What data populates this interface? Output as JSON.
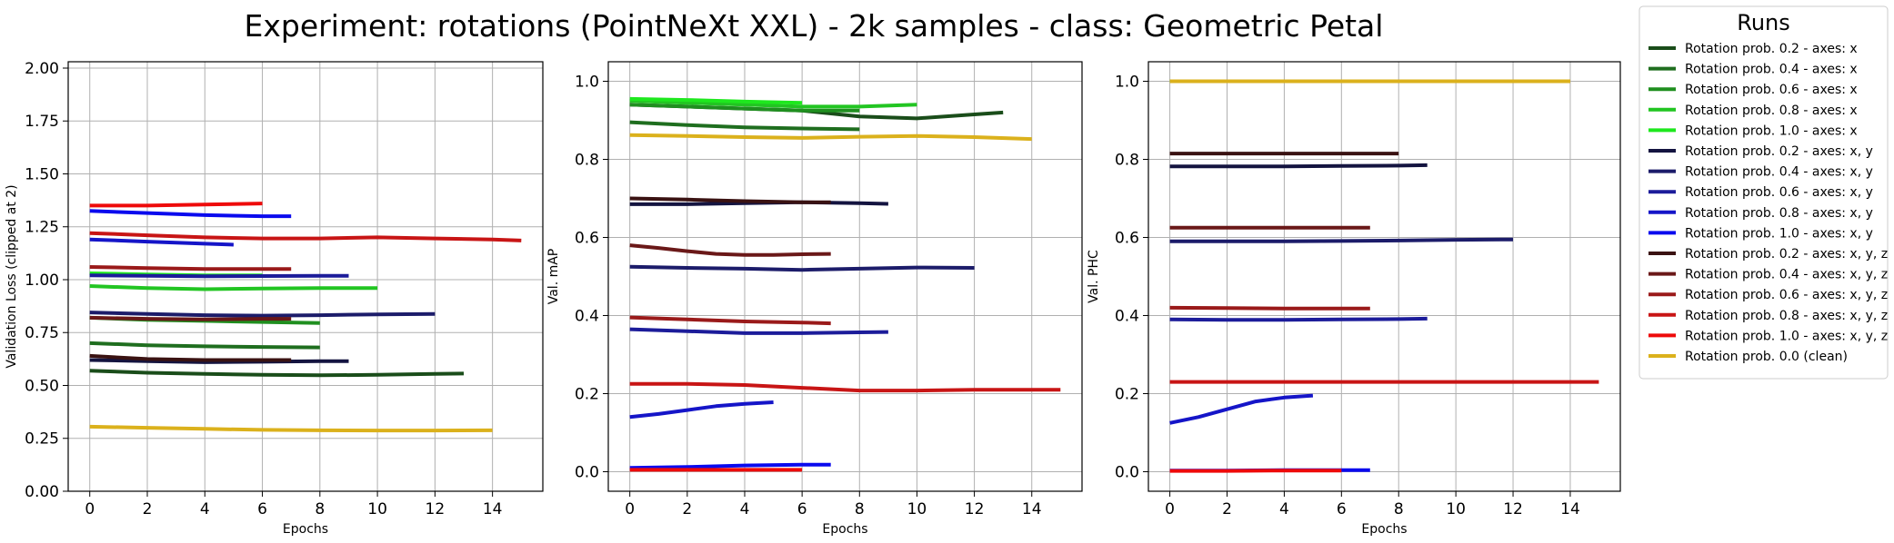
{
  "figure": {
    "title": "Experiment: rotations (PointNeXt XXL) - 2k samples - class: Geometric Petal"
  },
  "legend": {
    "title": "Runs",
    "placement": "outside-right"
  },
  "series_styles": [
    {
      "name": "Rotation prob. 0.2 - axes: x",
      "color": "#1a4d1a"
    },
    {
      "name": "Rotation prob. 0.4 - axes: x",
      "color": "#1f6e1f"
    },
    {
      "name": "Rotation prob. 0.6 - axes: x",
      "color": "#1f8f1f"
    },
    {
      "name": "Rotation prob. 0.8 - axes: x",
      "color": "#22c522"
    },
    {
      "name": "Rotation prob. 1.0 - axes: x",
      "color": "#1ee81e"
    },
    {
      "name": "Rotation prob. 0.2 - axes: x, y",
      "color": "#141440"
    },
    {
      "name": "Rotation prob. 0.4 - axes: x, y",
      "color": "#1c1c6a"
    },
    {
      "name": "Rotation prob. 0.6 - axes: x, y",
      "color": "#1c1c9a"
    },
    {
      "name": "Rotation prob. 0.8 - axes: x, y",
      "color": "#1515c8"
    },
    {
      "name": "Rotation prob. 1.0 - axes: x, y",
      "color": "#0a0aee"
    },
    {
      "name": "Rotation prob. 0.2 - axes: x, y, z",
      "color": "#3a1212"
    },
    {
      "name": "Rotation prob. 0.4 - axes: x, y, z",
      "color": "#6a1818"
    },
    {
      "name": "Rotation prob. 0.6 - axes: x, y, z",
      "color": "#9a1a1a"
    },
    {
      "name": "Rotation prob. 0.8 - axes: x, y, z",
      "color": "#c81515"
    },
    {
      "name": "Rotation prob. 1.0 - axes: x, y, z",
      "color": "#ee0a0a"
    },
    {
      "name": "Rotation prob. 0.0 (clean)",
      "color": "#dbb11c"
    }
  ],
  "chart_data": [
    {
      "type": "line",
      "xlabel": "Epochs",
      "ylabel": "Validation Loss (clipped at 2)",
      "xlim": [
        -0.75,
        15.75
      ],
      "ylim": [
        0,
        2.03
      ],
      "xticks": [
        0,
        2,
        4,
        6,
        8,
        10,
        12,
        14
      ],
      "yticks": [
        0.0,
        0.25,
        0.5,
        0.75,
        1.0,
        1.25,
        1.5,
        1.75,
        2.0
      ],
      "grid": true,
      "series": [
        {
          "name": "Rotation prob. 0.2 - axes: x",
          "x": [
            0,
            2,
            4,
            6,
            8,
            10,
            12,
            13
          ],
          "y": [
            0.57,
            0.56,
            0.555,
            0.55,
            0.548,
            0.55,
            0.555,
            0.556
          ]
        },
        {
          "name": "Rotation prob. 0.4 - axes: x",
          "x": [
            0,
            2,
            4,
            6,
            8
          ],
          "y": [
            0.7,
            0.69,
            0.685,
            0.682,
            0.68
          ]
        },
        {
          "name": "Rotation prob. 0.6 - axes: x",
          "x": [
            0,
            2,
            4,
            6,
            8
          ],
          "y": [
            0.82,
            0.81,
            0.805,
            0.8,
            0.795
          ]
        },
        {
          "name": "Rotation prob. 0.8 - axes: x",
          "x": [
            0,
            2,
            4,
            6,
            8,
            10
          ],
          "y": [
            0.97,
            0.96,
            0.955,
            0.958,
            0.96,
            0.96
          ]
        },
        {
          "name": "Rotation prob. 1.0 - axes: x",
          "x": [
            0,
            2,
            4,
            6
          ],
          "y": [
            1.03,
            1.025,
            1.02,
            1.02
          ]
        },
        {
          "name": "Rotation prob. 0.2 - axes: x, y",
          "x": [
            0,
            2,
            4,
            6,
            8,
            9
          ],
          "y": [
            0.62,
            0.615,
            0.61,
            0.612,
            0.615,
            0.615
          ]
        },
        {
          "name": "Rotation prob. 0.4 - axes: x, y",
          "x": [
            0,
            2,
            4,
            6,
            8,
            10,
            12
          ],
          "y": [
            0.845,
            0.838,
            0.832,
            0.83,
            0.832,
            0.836,
            0.838
          ]
        },
        {
          "name": "Rotation prob. 0.6 - axes: x, y",
          "x": [
            0,
            2,
            4,
            6,
            8,
            9
          ],
          "y": [
            1.02,
            1.018,
            1.016,
            1.017,
            1.018,
            1.018
          ]
        },
        {
          "name": "Rotation prob. 0.8 - axes: x, y",
          "x": [
            0,
            2,
            4,
            5
          ],
          "y": [
            1.19,
            1.18,
            1.17,
            1.165
          ]
        },
        {
          "name": "Rotation prob. 1.0 - axes: x, y",
          "x": [
            0,
            2,
            4,
            6,
            7
          ],
          "y": [
            1.325,
            1.315,
            1.305,
            1.3,
            1.3
          ]
        },
        {
          "name": "Rotation prob. 0.2 - axes: x, y, z",
          "x": [
            0,
            2,
            4,
            6,
            7
          ],
          "y": [
            0.64,
            0.625,
            0.62,
            0.62,
            0.62
          ]
        },
        {
          "name": "Rotation prob. 0.4 - axes: x, y, z",
          "x": [
            0,
            2,
            4,
            6,
            7
          ],
          "y": [
            0.82,
            0.815,
            0.812,
            0.815,
            0.815
          ]
        },
        {
          "name": "Rotation prob. 0.6 - axes: x, y, z",
          "x": [
            0,
            2,
            4,
            6,
            7
          ],
          "y": [
            1.06,
            1.055,
            1.05,
            1.05,
            1.05
          ]
        },
        {
          "name": "Rotation prob. 0.8 - axes: x, y, z",
          "x": [
            0,
            2,
            4,
            6,
            8,
            10,
            12,
            14,
            15
          ],
          "y": [
            1.22,
            1.21,
            1.2,
            1.195,
            1.195,
            1.2,
            1.195,
            1.19,
            1.185
          ]
        },
        {
          "name": "Rotation prob. 1.0 - axes: x, y, z",
          "x": [
            0,
            2,
            4,
            6
          ],
          "y": [
            1.35,
            1.35,
            1.355,
            1.36
          ]
        },
        {
          "name": "Rotation prob. 0.0 (clean)",
          "x": [
            0,
            2,
            4,
            6,
            8,
            10,
            12,
            14
          ],
          "y": [
            0.305,
            0.3,
            0.295,
            0.29,
            0.288,
            0.287,
            0.287,
            0.288
          ]
        }
      ]
    },
    {
      "type": "line",
      "xlabel": "Epochs",
      "ylabel": "Val. mAP",
      "xlim": [
        -0.75,
        15.75
      ],
      "ylim": [
        -0.05,
        1.05
      ],
      "xticks": [
        0,
        2,
        4,
        6,
        8,
        10,
        12,
        14
      ],
      "yticks": [
        0.0,
        0.2,
        0.4,
        0.6,
        0.8,
        1.0
      ],
      "grid": true,
      "series": [
        {
          "name": "Rotation prob. 0.2 - axes: x",
          "x": [
            0,
            2,
            4,
            6,
            8,
            10,
            12,
            13
          ],
          "y": [
            0.94,
            0.935,
            0.93,
            0.925,
            0.91,
            0.905,
            0.915,
            0.92
          ]
        },
        {
          "name": "Rotation prob. 0.4 - axes: x",
          "x": [
            0,
            2,
            4,
            6,
            8
          ],
          "y": [
            0.895,
            0.888,
            0.882,
            0.879,
            0.877
          ]
        },
        {
          "name": "Rotation prob. 0.6 - axes: x",
          "x": [
            0,
            2,
            4,
            6,
            8
          ],
          "y": [
            0.94,
            0.935,
            0.93,
            0.925,
            0.925
          ]
        },
        {
          "name": "Rotation prob. 0.8 - axes: x",
          "x": [
            0,
            2,
            4,
            6,
            8,
            10
          ],
          "y": [
            0.95,
            0.945,
            0.94,
            0.935,
            0.935,
            0.94
          ]
        },
        {
          "name": "Rotation prob. 1.0 - axes: x",
          "x": [
            0,
            2,
            4,
            6
          ],
          "y": [
            0.955,
            0.952,
            0.948,
            0.945
          ]
        },
        {
          "name": "Rotation prob. 0.2 - axes: x, y",
          "x": [
            0,
            2,
            4,
            6,
            8,
            9
          ],
          "y": [
            0.685,
            0.685,
            0.688,
            0.69,
            0.688,
            0.686
          ]
        },
        {
          "name": "Rotation prob. 0.4 - axes: x, y",
          "x": [
            0,
            2,
            4,
            6,
            8,
            10,
            12
          ],
          "y": [
            0.525,
            0.522,
            0.52,
            0.517,
            0.52,
            0.523,
            0.522
          ]
        },
        {
          "name": "Rotation prob. 0.6 - axes: x, y",
          "x": [
            0,
            2,
            4,
            6,
            8,
            9
          ],
          "y": [
            0.365,
            0.36,
            0.355,
            0.355,
            0.357,
            0.358
          ]
        },
        {
          "name": "Rotation prob. 0.8 - axes: x, y",
          "x": [
            0,
            1,
            2,
            3,
            4,
            5
          ],
          "y": [
            0.14,
            0.148,
            0.158,
            0.168,
            0.174,
            0.178
          ]
        },
        {
          "name": "Rotation prob. 1.0 - axes: x, y",
          "x": [
            0,
            2,
            4,
            6,
            7
          ],
          "y": [
            0.01,
            0.012,
            0.016,
            0.018,
            0.018
          ]
        },
        {
          "name": "Rotation prob. 0.2 - axes: x, y, z",
          "x": [
            0,
            2,
            4,
            6,
            7
          ],
          "y": [
            0.7,
            0.697,
            0.693,
            0.69,
            0.69
          ]
        },
        {
          "name": "Rotation prob. 0.4 - axes: x, y, z",
          "x": [
            0,
            1,
            2,
            3,
            4,
            5,
            6,
            7
          ],
          "y": [
            0.58,
            0.573,
            0.565,
            0.558,
            0.555,
            0.555,
            0.557,
            0.558
          ]
        },
        {
          "name": "Rotation prob. 0.6 - axes: x, y, z",
          "x": [
            0,
            2,
            4,
            6,
            7
          ],
          "y": [
            0.395,
            0.39,
            0.385,
            0.382,
            0.38
          ]
        },
        {
          "name": "Rotation prob. 0.8 - axes: x, y, z",
          "x": [
            0,
            2,
            4,
            6,
            8,
            10,
            12,
            14,
            15
          ],
          "y": [
            0.225,
            0.225,
            0.222,
            0.215,
            0.208,
            0.208,
            0.21,
            0.21,
            0.21
          ]
        },
        {
          "name": "Rotation prob. 1.0 - axes: x, y, z",
          "x": [
            0,
            2,
            4,
            6
          ],
          "y": [
            0.005,
            0.005,
            0.005,
            0.005
          ]
        },
        {
          "name": "Rotation prob. 0.0 (clean)",
          "x": [
            0,
            2,
            4,
            6,
            8,
            10,
            12,
            14
          ],
          "y": [
            0.862,
            0.86,
            0.857,
            0.855,
            0.858,
            0.86,
            0.857,
            0.852
          ]
        }
      ]
    },
    {
      "type": "line",
      "xlabel": "Epochs",
      "ylabel": "Val. PHC",
      "xlim": [
        -0.75,
        15.75
      ],
      "ylim": [
        -0.05,
        1.05
      ],
      "xticks": [
        0,
        2,
        4,
        6,
        8,
        10,
        12,
        14
      ],
      "yticks": [
        0.0,
        0.2,
        0.4,
        0.6,
        0.8,
        1.0
      ],
      "grid": true,
      "series": [
        {
          "name": "Rotation prob. 0.2 - axes: x",
          "x": [
            0,
            2,
            4,
            6,
            8,
            10,
            12,
            13
          ],
          "y": [
            1.0,
            1.0,
            1.0,
            1.0,
            1.0,
            1.0,
            1.0,
            1.0
          ]
        },
        {
          "name": "Rotation prob. 0.4 - axes: x",
          "x": [
            0,
            2,
            4,
            6,
            8
          ],
          "y": [
            1.0,
            1.0,
            1.0,
            1.0,
            1.0
          ]
        },
        {
          "name": "Rotation prob. 0.6 - axes: x",
          "x": [
            0,
            2,
            4,
            6,
            8
          ],
          "y": [
            1.0,
            1.0,
            1.0,
            1.0,
            1.0
          ]
        },
        {
          "name": "Rotation prob. 0.8 - axes: x",
          "x": [
            0,
            2,
            4,
            6,
            8,
            10
          ],
          "y": [
            1.0,
            1.0,
            1.0,
            1.0,
            1.0,
            1.0
          ]
        },
        {
          "name": "Rotation prob. 1.0 - axes: x",
          "x": [
            0,
            2,
            4,
            6
          ],
          "y": [
            1.0,
            1.0,
            1.0,
            1.0
          ]
        },
        {
          "name": "Rotation prob. 0.2 - axes: x, y",
          "x": [
            0,
            2,
            4,
            6,
            8,
            9
          ],
          "y": [
            0.782,
            0.782,
            0.782,
            0.783,
            0.784,
            0.785
          ]
        },
        {
          "name": "Rotation prob. 0.4 - axes: x, y",
          "x": [
            0,
            2,
            4,
            6,
            8,
            10,
            12
          ],
          "y": [
            0.59,
            0.59,
            0.59,
            0.591,
            0.592,
            0.594,
            0.595
          ]
        },
        {
          "name": "Rotation prob. 0.6 - axes: x, y",
          "x": [
            0,
            2,
            4,
            6,
            8,
            9
          ],
          "y": [
            0.39,
            0.389,
            0.389,
            0.39,
            0.391,
            0.392
          ]
        },
        {
          "name": "Rotation prob. 0.8 - axes: x, y",
          "x": [
            0,
            1,
            2,
            3,
            4,
            5
          ],
          "y": [
            0.125,
            0.14,
            0.16,
            0.18,
            0.19,
            0.195
          ]
        },
        {
          "name": "Rotation prob. 1.0 - axes: x, y",
          "x": [
            0,
            2,
            4,
            6,
            7
          ],
          "y": [
            0.003,
            0.003,
            0.004,
            0.004,
            0.004
          ]
        },
        {
          "name": "Rotation prob. 0.2 - axes: x, y, z",
          "x": [
            0,
            2,
            4,
            6,
            8
          ],
          "y": [
            0.815,
            0.815,
            0.815,
            0.815,
            0.815
          ]
        },
        {
          "name": "Rotation prob. 0.4 - axes: x, y, z",
          "x": [
            0,
            2,
            4,
            6,
            7
          ],
          "y": [
            0.625,
            0.625,
            0.625,
            0.625,
            0.625
          ]
        },
        {
          "name": "Rotation prob. 0.6 - axes: x, y, z",
          "x": [
            0,
            2,
            4,
            6,
            7
          ],
          "y": [
            0.42,
            0.419,
            0.418,
            0.418,
            0.418
          ]
        },
        {
          "name": "Rotation prob. 0.8 - axes: x, y, z",
          "x": [
            0,
            2,
            4,
            6,
            8,
            10,
            12,
            14,
            15
          ],
          "y": [
            0.23,
            0.23,
            0.23,
            0.23,
            0.23,
            0.23,
            0.23,
            0.23,
            0.23
          ]
        },
        {
          "name": "Rotation prob. 1.0 - axes: x, y, z",
          "x": [
            0,
            2,
            4,
            6
          ],
          "y": [
            0.002,
            0.002,
            0.003,
            0.003
          ]
        },
        {
          "name": "Rotation prob. 0.0 (clean)",
          "x": [
            0,
            2,
            4,
            6,
            8,
            10,
            12,
            14
          ],
          "y": [
            1.0,
            1.0,
            1.0,
            1.0,
            1.0,
            1.0,
            1.0,
            1.0
          ]
        }
      ]
    }
  ]
}
